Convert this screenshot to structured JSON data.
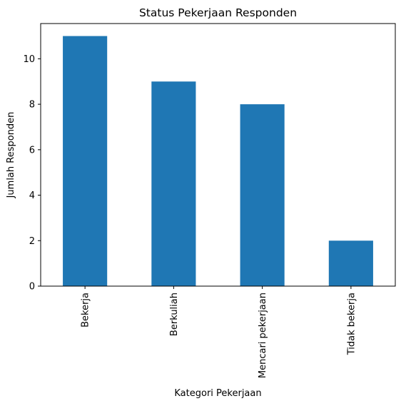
{
  "chart_data": {
    "type": "bar",
    "title": "Status Pekerjaan Responden",
    "xlabel": "Kategori Pekerjaan",
    "ylabel": "Jumlah Responden",
    "categories": [
      "Bekerja",
      "Berkuliah",
      "Mencari pekerjaan",
      "Tidak bekerja"
    ],
    "values": [
      11,
      9,
      8,
      2
    ],
    "ylim": [
      0,
      11.55
    ],
    "yticks": [
      0,
      2,
      4,
      6,
      8,
      10
    ],
    "ytick_labels": [
      "0",
      "2",
      "4",
      "6",
      "8",
      "10"
    ],
    "grid": false,
    "legend": "none",
    "bar_color": "#1f77b4"
  }
}
